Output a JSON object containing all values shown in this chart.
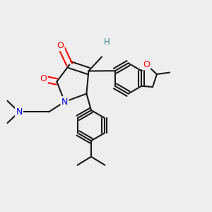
{
  "bg_color": "#eeeeee",
  "bond_color": "#1a1a1a",
  "bond_lw": 1.5,
  "dbo": 0.014,
  "atom_colors": {
    "O": "#ff0000",
    "N": "#0000dd",
    "H": "#3a8b8b",
    "C": "#1a1a1a"
  },
  "fs": 9.0,
  "figsize": [
    3.0,
    3.0
  ],
  "dpi": 100
}
